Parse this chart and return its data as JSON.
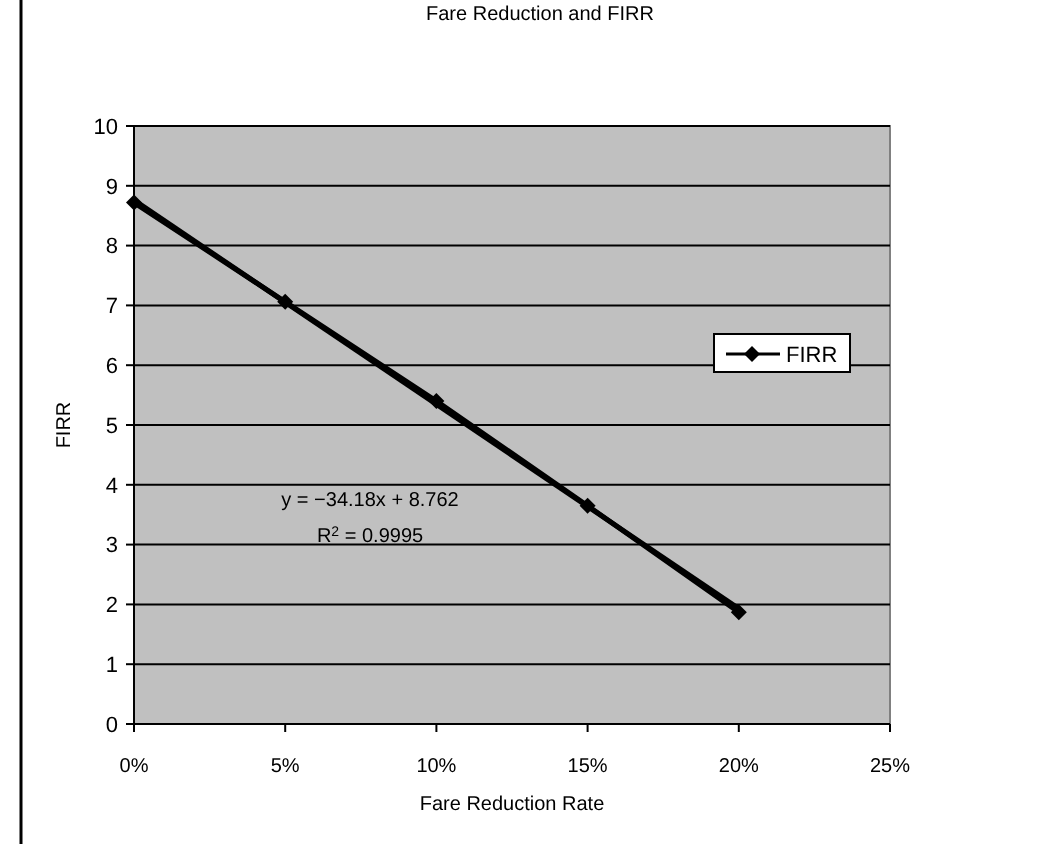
{
  "chart_data": {
    "type": "line",
    "title": "Fare Reduction and FIRR",
    "xlabel": "Fare Reduction Rate",
    "ylabel": "FIRR",
    "x": [
      0,
      0.05,
      0.1,
      0.15,
      0.2
    ],
    "series": [
      {
        "name": "FIRR",
        "color": "#000000",
        "values": [
          8.72,
          7.06,
          5.4,
          3.65,
          1.87
        ],
        "marker": "diamond"
      },
      {
        "type": "line",
        "color": "#000000",
        "x": [
          0,
          0.2
        ],
        "values": [
          8.76,
          1.93
        ],
        "marker": "none"
      }
    ],
    "xlim": [
      0,
      0.25
    ],
    "xticks": [
      {
        "value": 0,
        "label": "0%"
      },
      {
        "value": 0.05,
        "label": "5%"
      },
      {
        "value": 0.1,
        "label": "10%"
      },
      {
        "value": 0.15,
        "label": "15%"
      },
      {
        "value": 0.2,
        "label": "20%"
      },
      {
        "value": 0.25,
        "label": "25%"
      }
    ],
    "ylim": [
      0,
      10
    ],
    "yticks": [
      0,
      1,
      2,
      3,
      4,
      5,
      6,
      7,
      8,
      9,
      10
    ],
    "grid": "y",
    "legend": "right",
    "annotations": [
      "y = −34.18x + 8.762",
      "R$^{2}$ = 0.9995"
    ]
  }
}
